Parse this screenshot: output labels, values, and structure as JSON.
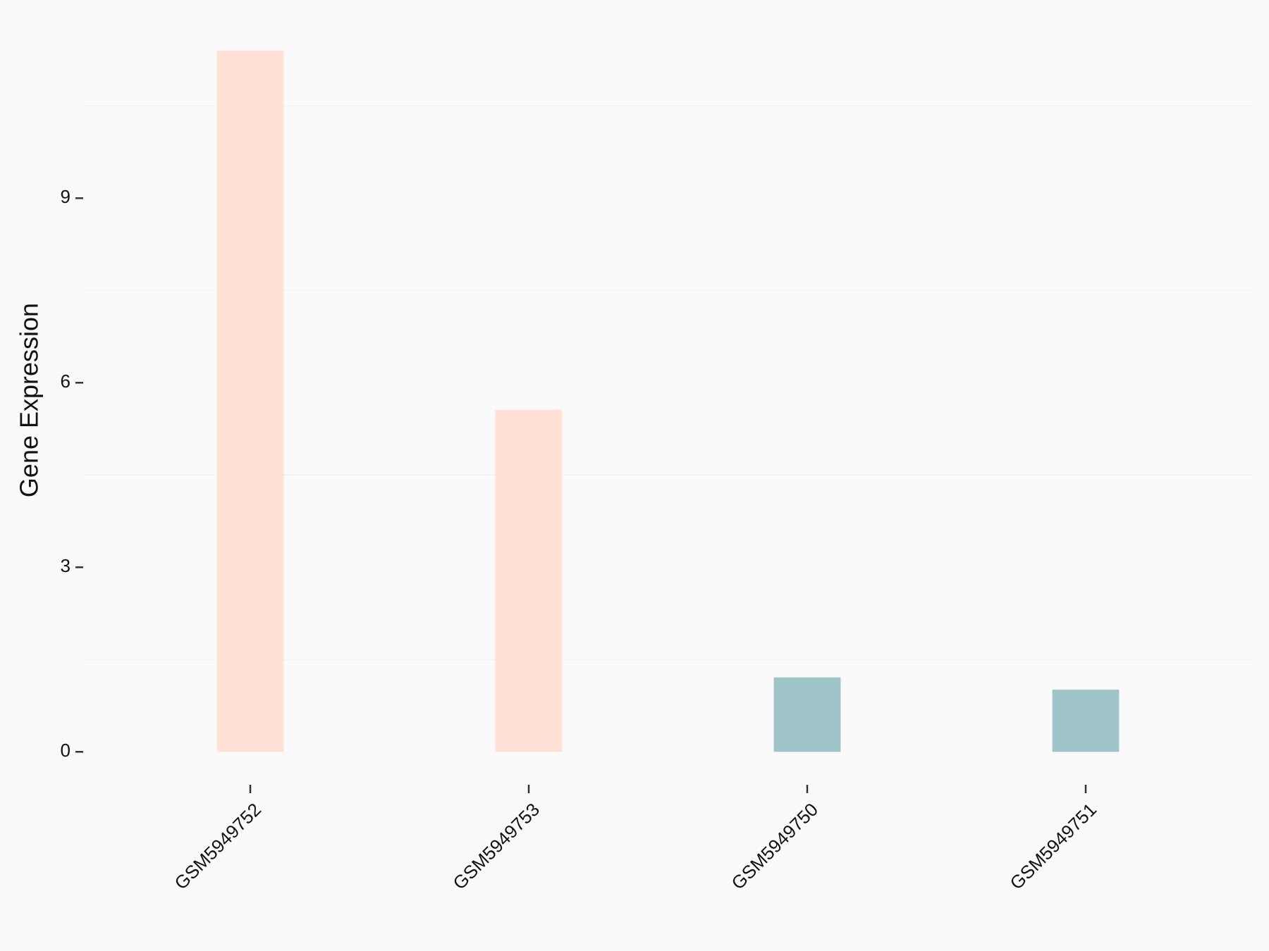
{
  "chart_data": {
    "type": "bar",
    "y_label": "Gene Expression",
    "categories": [
      "GSM5949752",
      "GSM5949753",
      "GSM5949750",
      "GSM5949751"
    ],
    "values": [
      11.4,
      5.56,
      1.21,
      1.01
    ],
    "colors": [
      "#ffe1d6",
      "#ffe1d6",
      "#9fc5c8",
      "#9fc5c8"
    ],
    "ylim": [
      -0.57,
      11.97
    ],
    "yticks": [
      0,
      3,
      6,
      9
    ],
    "y_minor_grid": [
      1.5,
      4.5,
      7.5,
      10.5
    ]
  }
}
